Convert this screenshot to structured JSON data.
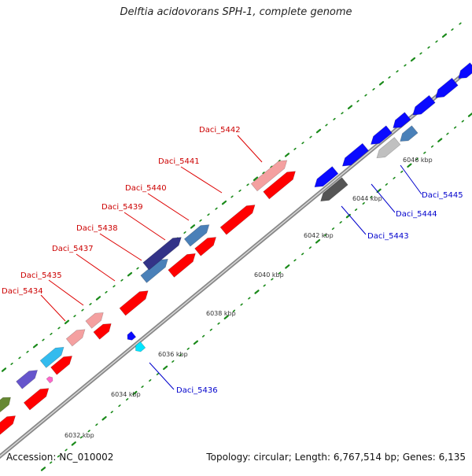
{
  "title": "Delftia acidovorans SPH-1, complete genome",
  "footer": {
    "accession": "Accession: NC_010002",
    "summary": "Topology: circular; Length: 6,767,514 bp; Genes: 6,135"
  },
  "ticks": [
    "6032 kbp",
    "6034 kbp",
    "6036 kbp",
    "6038 kbp",
    "6040 kbp",
    "6042 kbp",
    "6044 kbp",
    "6046 kbp"
  ],
  "gene_labels": {
    "forward": [
      "Daci_5434",
      "Daci_5435",
      "Daci_5437",
      "Daci_5438",
      "Daci_5439",
      "Daci_5440",
      "Daci_5441",
      "Daci_5442"
    ],
    "reverse": [
      "Daci_5436",
      "Daci_5443",
      "Daci_5444",
      "Daci_5445"
    ]
  },
  "colors": {
    "forward_label": "#cc0000",
    "reverse_label": "#0000cc",
    "red": "#ff0000",
    "pink": "#f4a0a0",
    "blue": "#0a0aff",
    "steel": "#4a80b8",
    "navy": "#333388",
    "gray": "#555555",
    "silver": "#c0c0c0",
    "cyan": "#33bbee",
    "purple": "#6655cc",
    "olive": "#668833",
    "backbone": "#999999",
    "tick_dot": "#1a8a1a"
  }
}
